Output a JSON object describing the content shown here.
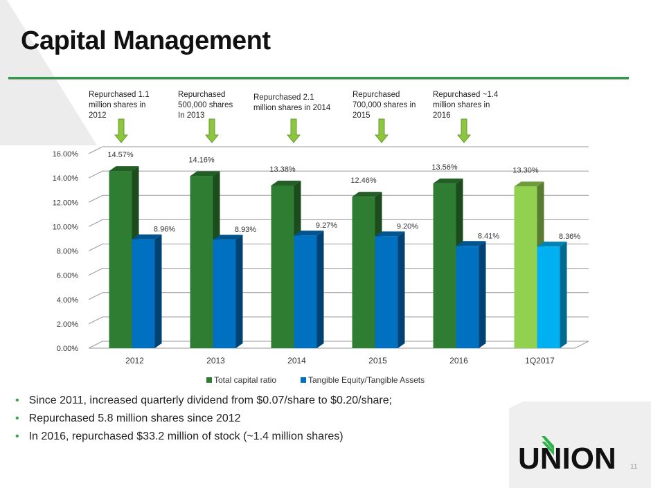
{
  "title": "Capital Management",
  "annotations": [
    "Repurchased 1.1 million shares in 2012",
    "Repurchased 500,000 shares In 2013",
    "Repurchased  2.1 million shares in 2014",
    "Repurchased 700,000 shares in 2015",
    "Repurchased  ~1.4 million shares in 2016"
  ],
  "bullets": [
    "Since 2011, increased quarterly dividend from $0.07/share to $0.20/share;",
    "Repurchased 5.8 million shares since 2012",
    "In 2016, repurchased $33.2 million of stock (~1.4 million shares)"
  ],
  "logo": "UNION",
  "page_number": "11",
  "chart_data": {
    "type": "bar",
    "categories": [
      "2012",
      "2013",
      "2014",
      "2015",
      "2016",
      "1Q2017"
    ],
    "series": [
      {
        "name": "Total capital ratio",
        "values": [
          14.57,
          14.16,
          13.38,
          12.46,
          13.56,
          13.3
        ],
        "labels": [
          "14.57%",
          "14.16%",
          "13.38%",
          "12.46%",
          "13.56%",
          "13.30%"
        ],
        "color": "#2e7d32",
        "highlight_color": "#92d050"
      },
      {
        "name": "Tangible Equity/Tangible Assets",
        "values": [
          8.96,
          8.93,
          9.27,
          9.2,
          8.41,
          8.36
        ],
        "labels": [
          "8.96%",
          "8.93%",
          "9.27%",
          "9.20%",
          "8.41%",
          "8.36%"
        ],
        "color": "#0070c0",
        "highlight_color": "#00b0f0"
      }
    ],
    "yticks": [
      "0.00%",
      "2.00%",
      "4.00%",
      "6.00%",
      "8.00%",
      "10.00%",
      "12.00%",
      "14.00%",
      "16.00%"
    ],
    "ylim": [
      0,
      16
    ],
    "legend": "bottom",
    "grid": true
  }
}
